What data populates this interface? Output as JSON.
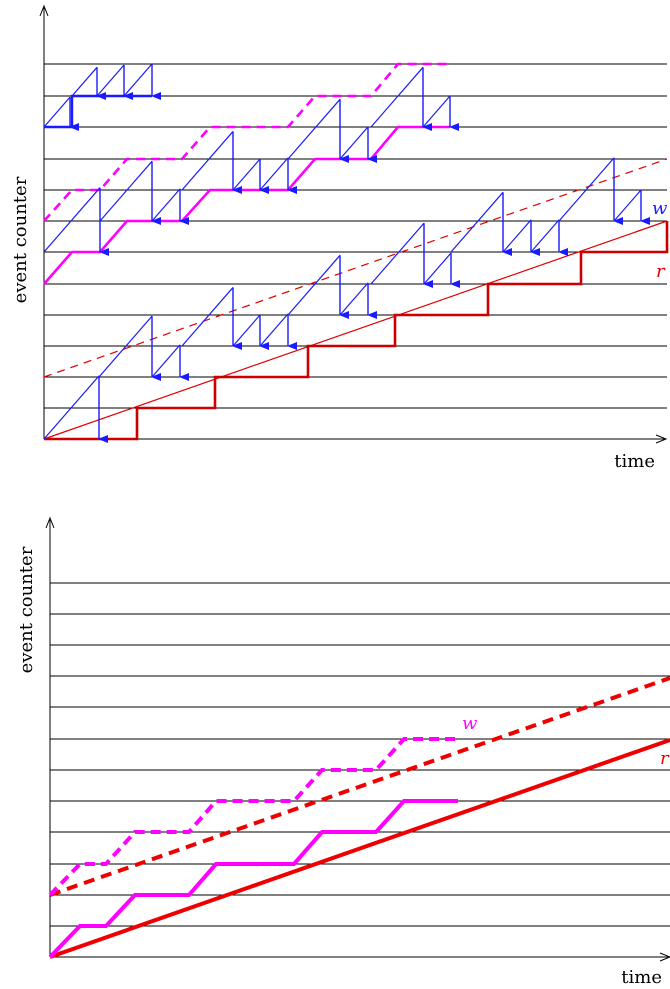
{
  "colors": {
    "axis": "#000000",
    "grid": "#000000",
    "w_blue": "#1a1aff",
    "w_magenta": "#ff00ff",
    "r_red": "#dd0000"
  },
  "panels": [
    {
      "ylabel": "event counter",
      "xlabel": "time",
      "series_labels": {
        "w": "w",
        "r": "r"
      }
    },
    {
      "ylabel": "event counter",
      "xlabel": "time",
      "series_labels": {
        "w": "w",
        "r": "r"
      }
    }
  ]
}
